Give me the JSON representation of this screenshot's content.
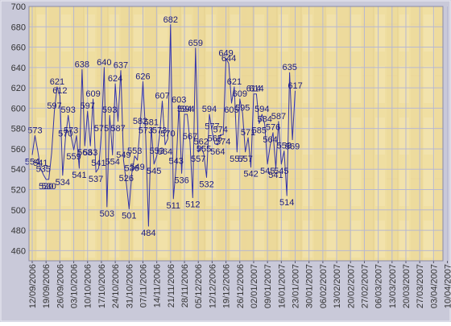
{
  "chart_data": {
    "type": "line",
    "title": "",
    "xlabel": "",
    "ylabel": "",
    "ylim": [
      450,
      700
    ],
    "y_ticks": [
      "460",
      "480",
      "500",
      "520",
      "540",
      "560",
      "580",
      "600",
      "620",
      "640",
      "660",
      "680",
      "700"
    ],
    "x_tick_labels": [
      "12/09/2006",
      "19/09/2006",
      "26/09/2006",
      "03/10/2006",
      "10/10/2006",
      "17/10/2006",
      "24/10/2006",
      "31/10/2006",
      "07/11/2006",
      "14/11/2006",
      "21/11/2006",
      "28/11/2006",
      "05/12/2006",
      "12/12/2006",
      "19/12/2006",
      "26/12/2006",
      "02/01/2007",
      "09/01/2007",
      "16/01/2007",
      "23/01/2007",
      "30/01/2007",
      "06/02/2007",
      "13/02/2007",
      "20/02/2007",
      "27/02/2007",
      "06/03/2007",
      "13/03/2007",
      "20/03/2007",
      "27/03/2007",
      "03/04/2007",
      "10/04/2007"
    ],
    "x_tick_indices": [
      0,
      5,
      10,
      15,
      20,
      25,
      30,
      35,
      40,
      45,
      50,
      55,
      60,
      65,
      70,
      75,
      80,
      85,
      90,
      95,
      100,
      105,
      110,
      115,
      120,
      125,
      130,
      135,
      140,
      145,
      150
    ],
    "grid": true,
    "legend": "none",
    "colors": {
      "line": "#3333aa",
      "label": "#1a1a80",
      "grid": "#b8b8d0",
      "background": "#eedda0",
      "panel": "#c8c8d8",
      "frame": "#8a8aa8"
    },
    "series": [
      {
        "values": [
          554,
          573,
          558,
          541,
          535,
          530,
          530,
          556,
          597,
          621,
          612,
          534,
          570,
          593,
          573,
          559,
          573,
          541,
          638,
          563,
          597,
          563,
          609,
          537,
          541,
          575,
          640,
          503,
          593,
          554,
          624,
          587,
          637,
          549,
          526,
          501,
          536,
          553,
          549,
          582,
          626,
          573,
          484,
          581,
          545,
          553,
          573,
          607,
          564,
          570,
          682,
          511,
          543,
          603,
          536,
          594,
          594,
          567,
          512,
          659,
          557,
          562,
          555,
          532,
          594,
          577,
          565,
          564,
          574,
          574,
          649,
          644,
          605,
          621,
          557,
          609,
          595,
          557,
          571,
          542,
          614,
          614,
          585,
          594,
          584,
          545,
          564,
          576,
          541,
          587,
          545,
          558,
          514,
          635,
          569,
          617
        ]
      }
    ],
    "data_labels": [
      {
        "i": 0,
        "t": "554"
      },
      {
        "i": 1,
        "t": "573"
      },
      {
        "i": 3,
        "t": "541"
      },
      {
        "i": 4,
        "t": "535"
      },
      {
        "i": 5,
        "t": "530"
      },
      {
        "i": 6,
        "t": "530"
      },
      {
        "i": 8,
        "t": "597"
      },
      {
        "i": 9,
        "t": "621"
      },
      {
        "i": 10,
        "t": "612"
      },
      {
        "i": 11,
        "t": "534"
      },
      {
        "i": 12,
        "t": "570"
      },
      {
        "i": 13,
        "t": "593"
      },
      {
        "i": 14,
        "t": "573"
      },
      {
        "i": 15,
        "t": "559"
      },
      {
        "i": 17,
        "t": "541"
      },
      {
        "i": 18,
        "t": "638"
      },
      {
        "i": 19,
        "t": "563"
      },
      {
        "i": 20,
        "t": "597"
      },
      {
        "i": 21,
        "t": "563"
      },
      {
        "i": 22,
        "t": "609"
      },
      {
        "i": 23,
        "t": "537"
      },
      {
        "i": 24,
        "t": "541"
      },
      {
        "i": 25,
        "t": "575"
      },
      {
        "i": 26,
        "t": "640"
      },
      {
        "i": 27,
        "t": "503"
      },
      {
        "i": 28,
        "t": "593"
      },
      {
        "i": 29,
        "t": "554"
      },
      {
        "i": 30,
        "t": "624"
      },
      {
        "i": 31,
        "t": "587"
      },
      {
        "i": 32,
        "t": "637"
      },
      {
        "i": 33,
        "t": "549"
      },
      {
        "i": 34,
        "t": "526"
      },
      {
        "i": 35,
        "t": "501"
      },
      {
        "i": 36,
        "t": "536"
      },
      {
        "i": 37,
        "t": "553"
      },
      {
        "i": 38,
        "t": "549"
      },
      {
        "i": 39,
        "t": "582"
      },
      {
        "i": 40,
        "t": "626"
      },
      {
        "i": 41,
        "t": "573"
      },
      {
        "i": 42,
        "t": "484"
      },
      {
        "i": 43,
        "t": "581"
      },
      {
        "i": 44,
        "t": "545"
      },
      {
        "i": 45,
        "t": "553"
      },
      {
        "i": 46,
        "t": "573"
      },
      {
        "i": 47,
        "t": "607"
      },
      {
        "i": 48,
        "t": "564"
      },
      {
        "i": 49,
        "t": "570"
      },
      {
        "i": 50,
        "t": "682"
      },
      {
        "i": 51,
        "t": "511"
      },
      {
        "i": 52,
        "t": "543"
      },
      {
        "i": 53,
        "t": "603"
      },
      {
        "i": 54,
        "t": "536"
      },
      {
        "i": 55,
        "t": "594"
      },
      {
        "i": 56,
        "t": "594"
      },
      {
        "i": 57,
        "t": "567"
      },
      {
        "i": 58,
        "t": "512"
      },
      {
        "i": 59,
        "t": "659"
      },
      {
        "i": 60,
        "t": "557"
      },
      {
        "i": 61,
        "t": "562"
      },
      {
        "i": 62,
        "t": "555"
      },
      {
        "i": 63,
        "t": "532"
      },
      {
        "i": 64,
        "t": "594"
      },
      {
        "i": 65,
        "t": "577"
      },
      {
        "i": 66,
        "t": "565"
      },
      {
        "i": 67,
        "t": "564"
      },
      {
        "i": 68,
        "t": "574"
      },
      {
        "i": 69,
        "t": "574"
      },
      {
        "i": 70,
        "t": "649"
      },
      {
        "i": 71,
        "t": "644"
      },
      {
        "i": 72,
        "t": "605"
      },
      {
        "i": 73,
        "t": "621"
      },
      {
        "i": 74,
        "t": "557"
      },
      {
        "i": 75,
        "t": "609"
      },
      {
        "i": 76,
        "t": "595"
      },
      {
        "i": 77,
        "t": "557"
      },
      {
        "i": 78,
        "t": "571"
      },
      {
        "i": 79,
        "t": "542"
      },
      {
        "i": 80,
        "t": "614"
      },
      {
        "i": 81,
        "t": "614"
      },
      {
        "i": 82,
        "t": "585"
      },
      {
        "i": 83,
        "t": "594"
      },
      {
        "i": 84,
        "t": "584"
      },
      {
        "i": 85,
        "t": "545"
      },
      {
        "i": 86,
        "t": "564"
      },
      {
        "i": 87,
        "t": "576"
      },
      {
        "i": 88,
        "t": "541"
      },
      {
        "i": 89,
        "t": "587"
      },
      {
        "i": 90,
        "t": "545"
      },
      {
        "i": 91,
        "t": "558"
      },
      {
        "i": 92,
        "t": "514"
      },
      {
        "i": 93,
        "t": "635"
      },
      {
        "i": 94,
        "t": "569"
      },
      {
        "i": 95,
        "t": "617"
      }
    ],
    "x_count": 151
  }
}
